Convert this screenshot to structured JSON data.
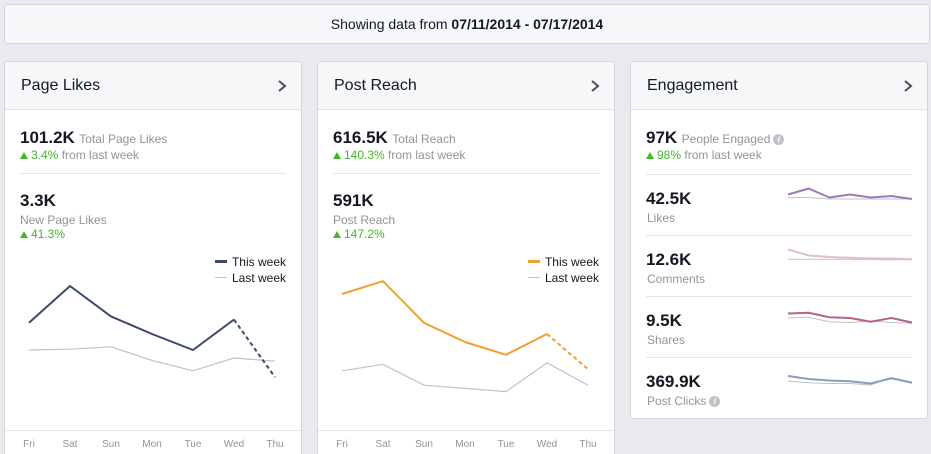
{
  "header": {
    "prefix": "Showing data from ",
    "range": "07/11/2014 - 07/17/2014"
  },
  "colors": {
    "likes_line": "#3b4a6b",
    "reach_line": "#f0a030",
    "last_week_line": "#bec2c9",
    "positive": "#42b72a"
  },
  "days": [
    "Fri",
    "Sat",
    "Sun",
    "Mon",
    "Tue",
    "Wed",
    "Thu"
  ],
  "page_likes": {
    "title": "Page Likes",
    "total_value": "101.2K",
    "total_label": "Total Page Likes",
    "total_change": "3.4%",
    "total_change_suffix": " from last week",
    "new_value": "3.3K",
    "new_label": "New Page Likes",
    "new_change": "41.3%",
    "legend_this": "This week",
    "legend_last": "Last week"
  },
  "post_reach": {
    "title": "Post Reach",
    "total_value": "616.5K",
    "total_label": "Total Reach",
    "total_change": "140.3%",
    "total_change_suffix": " from last week",
    "post_value": "591K",
    "post_label": "Post Reach",
    "post_change": "147.2%",
    "legend_this": "This week",
    "legend_last": "Last week"
  },
  "engagement": {
    "title": "Engagement",
    "people_value": "97K",
    "people_label": "People Engaged",
    "people_change": "98%",
    "people_change_suffix": " from last week",
    "rows": [
      {
        "value": "42.5K",
        "label": "Likes",
        "color": "#9b7bb5"
      },
      {
        "value": "12.6K",
        "label": "Comments",
        "color": "#dcbfd3"
      },
      {
        "value": "9.5K",
        "label": "Shares",
        "color": "#b3648f"
      },
      {
        "value": "369.9K",
        "label": "Post Clicks",
        "color": "#8c9bc2"
      }
    ]
  },
  "chart_data": [
    {
      "type": "line",
      "categories": [
        "Fri",
        "Sat",
        "Sun",
        "Mon",
        "Tue",
        "Wed",
        "Thu"
      ],
      "series": [
        {
          "name": "This week",
          "values": [
            62,
            85,
            66,
            55,
            45,
            64,
            28
          ]
        },
        {
          "name": "Last week",
          "values": [
            45,
            45.5,
            47,
            38.5,
            32,
            40,
            38
          ]
        }
      ],
      "ylim": [
        0,
        100
      ]
    },
    {
      "type": "line",
      "categories": [
        "Fri",
        "Sat",
        "Sun",
        "Mon",
        "Tue",
        "Wed",
        "Thu"
      ],
      "series": [
        {
          "name": "This week",
          "values": [
            80,
            88,
            62,
            50,
            42,
            55,
            33
          ]
        },
        {
          "name": "Last week",
          "values": [
            32,
            36,
            23,
            21,
            19,
            37,
            23
          ]
        }
      ],
      "ylim": [
        0,
        100
      ]
    },
    {
      "type": "line",
      "categories": [
        "Fri",
        "Sat",
        "Sun",
        "Mon",
        "Tue",
        "Wed",
        "Thu"
      ],
      "series": [
        {
          "name": "Likes this week",
          "values": [
            13,
            17,
            11,
            13,
            11,
            12,
            10
          ]
        },
        {
          "name": "Likes last week",
          "values": [
            11,
            11,
            10,
            10,
            10,
            10,
            10
          ]
        }
      ],
      "ylim": [
        0,
        20
      ]
    },
    {
      "type": "line",
      "categories": [
        "Fri",
        "Sat",
        "Sun",
        "Mon",
        "Tue",
        "Wed",
        "Thu"
      ],
      "series": [
        {
          "name": "Comments this week",
          "values": [
            17,
            13,
            12,
            11.5,
            11,
            11,
            10.5
          ]
        },
        {
          "name": "Comments last week",
          "values": [
            10.5,
            10.5,
            10.5,
            10.5,
            10.3,
            10.2,
            10.2
          ]
        }
      ],
      "ylim": [
        0,
        20
      ]
    },
    {
      "type": "line",
      "categories": [
        "Fri",
        "Sat",
        "Sun",
        "Mon",
        "Tue",
        "Wed",
        "Thu"
      ],
      "series": [
        {
          "name": "Shares this week",
          "values": [
            15,
            15.5,
            12.5,
            12,
            9.5,
            12,
            9
          ]
        },
        {
          "name": "Shares last week",
          "values": [
            12,
            12.5,
            9.5,
            9,
            10,
            9,
            8.5
          ]
        }
      ],
      "ylim": [
        0,
        20
      ]
    },
    {
      "type": "line",
      "categories": [
        "Fri",
        "Sat",
        "Sun",
        "Mon",
        "Tue",
        "Wed",
        "Thu"
      ],
      "series": [
        {
          "name": "Post Clicks this week",
          "values": [
            14,
            12,
            11,
            10.5,
            9,
            12.5,
            9.5
          ]
        },
        {
          "name": "Post Clicks last week",
          "values": [
            10.5,
            9.5,
            9,
            9,
            8,
            13,
            10
          ]
        }
      ],
      "ylim": [
        0,
        20
      ]
    }
  ]
}
